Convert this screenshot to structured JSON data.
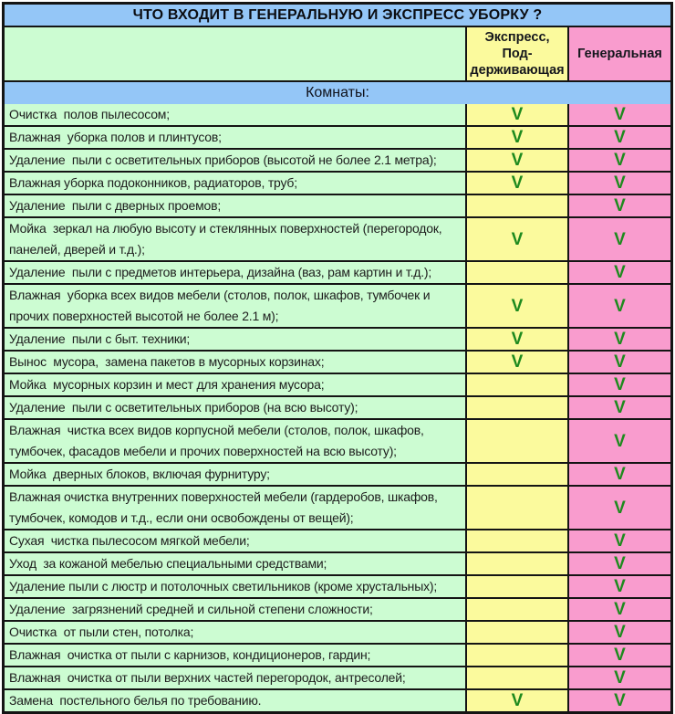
{
  "title": "ЧТО ВХОДИТ В ГЕНЕРАЛЬНУЮ И ЭКСПРЕСС УБОРКУ ?",
  "header": {
    "express_label": "Экспресс, Под-\nдерживающая",
    "general_label": "Генеральная"
  },
  "section_label": "Комнаты:",
  "checkmark_glyph": "V",
  "colors": {
    "header_blue": "#94c6f7",
    "row_green": "#ccfcd2",
    "express_yellow": "#fbfa9d",
    "general_pink": "#f99cce",
    "check_green": "#1e8a1e",
    "border": "#141414"
  },
  "rows": [
    {
      "label": "Очистка  полов пылесосом;",
      "express": true,
      "general": true
    },
    {
      "label": "Влажная  уборка полов и плинтусов;",
      "express": true,
      "general": true
    },
    {
      "label": "Удаление  пыли с осветительных приборов (высотой не более 2.1 метра);",
      "express": true,
      "general": true
    },
    {
      "label": "Влажная уборка подоконников, радиаторов, труб;",
      "express": true,
      "general": true
    },
    {
      "label": "Удаление  пыли с дверных проемов;",
      "express": false,
      "general": true
    },
    {
      "label": "Мойка  зеркал на любую высоту и стеклянных поверхностей (перегородок, панелей, дверей и т.д.);",
      "express": true,
      "general": true
    },
    {
      "label": "Удаление  пыли с предметов интерьера, дизайна (ваз, рам картин и т.д.);",
      "express": false,
      "general": true
    },
    {
      "label": "Влажная  уборка всех видов мебели (столов, полок, шкафов, тумбочек и прочих поверхностей высотой не более 2.1 м);",
      "express": true,
      "general": true
    },
    {
      "label": "Удаление  пыли с быт. техники;",
      "express": true,
      "general": true
    },
    {
      "label": "Вынос  мусора,  замена пакетов в мусорных корзинах;",
      "express": true,
      "general": true
    },
    {
      "label": "Мойка  мусорных корзин и мест для хранения мусора;",
      "express": false,
      "general": true
    },
    {
      "label": "Удаление  пыли с осветительных приборов (на всю высоту);",
      "express": false,
      "general": true
    },
    {
      "label": "Влажная  чистка всех видов корпусной мебели (столов, полок, шкафов, тумбочек, фасадов мебели и прочих поверхностей на всю высоту);",
      "express": false,
      "general": true
    },
    {
      "label": "Мойка  дверных блоков, включая фурнитуру;",
      "express": false,
      "general": true
    },
    {
      "label": "Влажная очистка внутренних поверхностей мебели (гардеробов, шкафов, тумбочек, комодов и т.д., если они освобождены от вещей);",
      "express": false,
      "general": true
    },
    {
      "label": "Сухая  чистка пылесосом мягкой мебели;",
      "express": false,
      "general": true
    },
    {
      "label": "Уход  за кожаной мебелью специальными средствами;",
      "express": false,
      "general": true
    },
    {
      "label": "Удаление пыли с люстр и потолочных светильников (кроме хрустальных);",
      "express": false,
      "general": true
    },
    {
      "label": "Удаление  загрязнений средней и сильной степени сложности;",
      "express": false,
      "general": true
    },
    {
      "label": "Очистка  от пыли стен, потолка;",
      "express": false,
      "general": true
    },
    {
      "label": "Влажная  очистка от пыли с карнизов, кондиционеров, гардин;",
      "express": false,
      "general": true
    },
    {
      "label": "Влажная  очистка от пыли верхних частей перегородок, антресолей;",
      "express": false,
      "general": true
    },
    {
      "label": "Замена  постельного белья по требованию.",
      "express": true,
      "general": true
    }
  ]
}
